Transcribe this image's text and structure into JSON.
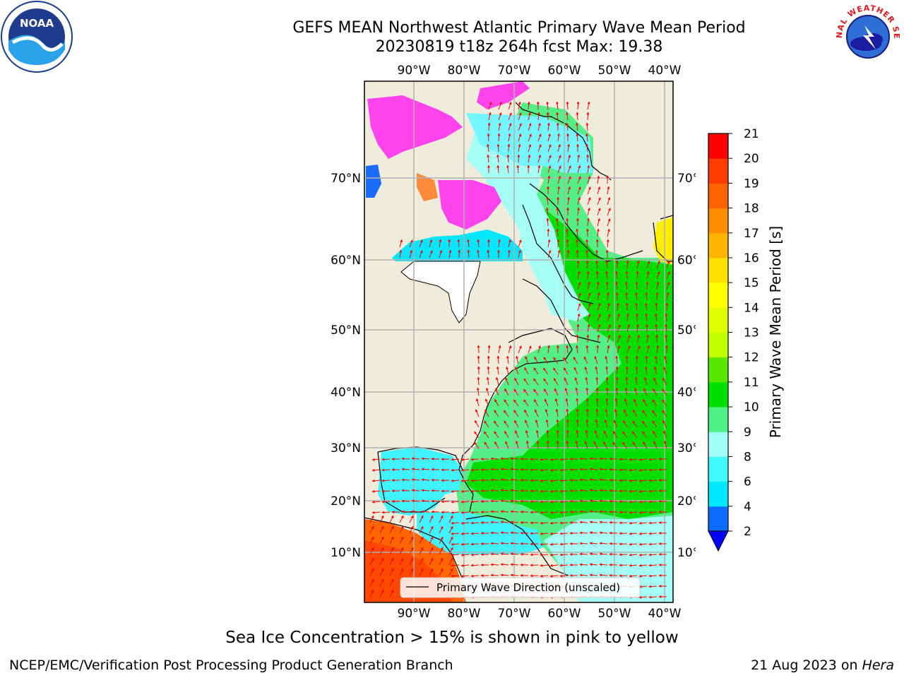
{
  "header": {
    "title_line1": "GEFS MEAN Northwest Atlantic Primary Wave Mean Period",
    "title_line2": "20230819 t18z 264h fcst   Max: 19.38"
  },
  "logos": {
    "left": "NOAA",
    "right_text": "NATIONAL WEATHER SERVICE"
  },
  "map": {
    "lon_labels": [
      "90°W",
      "80°W",
      "70°W",
      "60°W",
      "50°W",
      "40°W"
    ],
    "lat_labels": [
      "70°N",
      "60°N",
      "50°N",
      "40°N",
      "30°N",
      "20°N",
      "10°N"
    ],
    "legend_label": "Primary Wave Direction (unscaled)"
  },
  "colorbar": {
    "label": "Primary Wave Mean Period [s]",
    "ticks": [
      "2",
      "4",
      "6",
      "8",
      "9",
      "10",
      "11",
      "12",
      "13",
      "14",
      "15",
      "16",
      "17",
      "18",
      "19",
      "20",
      "21"
    ],
    "colors": [
      "#0a6cff",
      "#00e8ff",
      "#40f8ff",
      "#a0fff8",
      "#50f088",
      "#00e000",
      "#58e800",
      "#c0ff00",
      "#e0ff00",
      "#ffff00",
      "#ffe000",
      "#ffb400",
      "#ff8c00",
      "#ff6400",
      "#ff3c00",
      "#ff0000"
    ],
    "under_color": "#0000ff"
  },
  "notes": {
    "ice": "Sea Ice Concentration > 15% is shown in pink to yellow"
  },
  "footer": {
    "left": "NCEP/EMC/Verification Post Processing Product Generation Branch",
    "right_prefix": "21 Aug 2023 on ",
    "right_italic": "Hera"
  }
}
